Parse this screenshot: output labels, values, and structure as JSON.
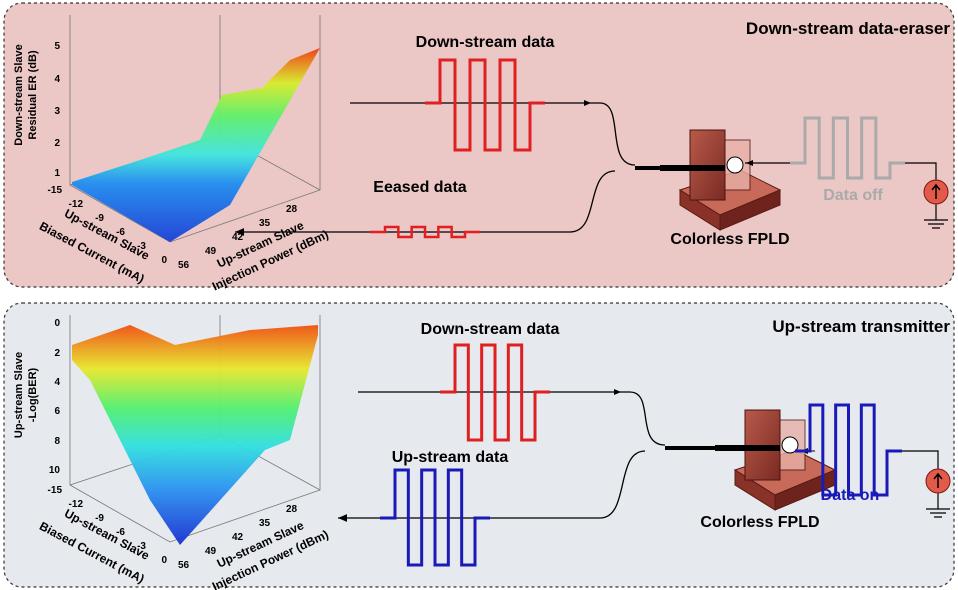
{
  "panels": [
    {
      "title": "Down-stream data-eraser",
      "stream_label": "Down-stream data",
      "return_label": "Eeased data",
      "device_label": "Colorless FPLD",
      "source_label": "Data off",
      "plot": {
        "z_label": [
          "Down-stream Slave",
          "Residual ER (dB)"
        ],
        "z_ticks": [
          "5",
          "4",
          "3",
          "2",
          "1"
        ],
        "x_label": [
          "Up-stream Slave",
          "Biased Current (mA)"
        ],
        "x_ticks": [
          "-15",
          "-12",
          "-9",
          "-6",
          "-3",
          "0"
        ],
        "y_label": [
          "Up-stream Slave",
          "Injection Power (dBm)"
        ],
        "y_ticks": [
          "56",
          "49",
          "42",
          "35",
          "28"
        ]
      }
    },
    {
      "title": "Up-stream transmitter",
      "stream_label": "Down-stream data",
      "return_label": "Up-stream data",
      "device_label": "Colorless FPLD",
      "source_label": "Data on",
      "plot": {
        "z_label": [
          "Up-stream Slave",
          "-Log(BER)"
        ],
        "z_ticks": [
          "0",
          "2",
          "4",
          "6",
          "8",
          "10"
        ],
        "x_label": [
          "Up-stream Slave",
          "Biased Current (mA)"
        ],
        "x_ticks": [
          "-15",
          "-12",
          "-9",
          "-6",
          "-3",
          "0"
        ],
        "y_label": [
          "Up-stream Slave",
          "Injection Power (dBm)"
        ],
        "y_ticks": [
          "56",
          "49",
          "42",
          "35",
          "28"
        ]
      }
    }
  ]
}
